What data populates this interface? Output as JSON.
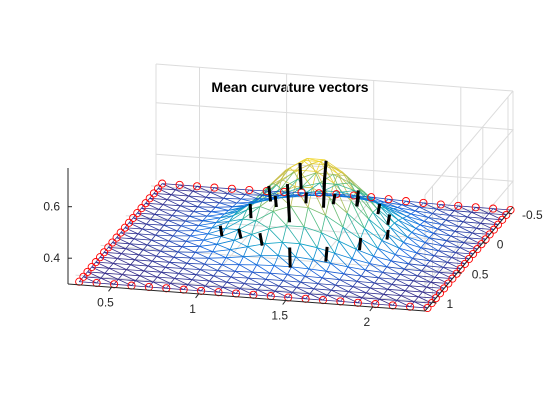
{
  "chart_data": {
    "type": "surface",
    "title": "Mean curvature vectors",
    "xlabel": "",
    "ylabel": "",
    "zlabel": "",
    "x_ticks": [
      "0.5",
      "1",
      "1.5",
      "2"
    ],
    "y_ticks": [
      "-0.5",
      "0",
      "0.5",
      "1"
    ],
    "z_ticks": [
      "0.4",
      "0.6"
    ],
    "xlim": [
      0.25,
      2.3
    ],
    "ylim": [
      -0.6,
      1.15
    ],
    "zlim": [
      0.3,
      0.75
    ],
    "grid": true,
    "mesh": {
      "nx": 21,
      "ny": 21,
      "base_z": 0.3,
      "bump_height": 0.3,
      "bump_center": [
        1.35,
        0.1
      ],
      "bump_width": 0.25,
      "colormap": "parula",
      "style": "triangulated wireframe"
    },
    "boundary_marker": {
      "shape": "circle",
      "color": "#ff0000"
    },
    "vector_color": "#000000",
    "vectors": [
      {
        "x": 0.85,
        "y": 0.2,
        "dx": 0.01,
        "dy": 0.0,
        "dz": -0.04
      },
      {
        "x": 0.95,
        "y": -0.05,
        "dx": 0.01,
        "dy": 0.02,
        "dz": -0.05
      },
      {
        "x": 1.05,
        "y": -0.2,
        "dx": 0.01,
        "dy": 0.01,
        "dz": -0.04
      },
      {
        "x": 1.2,
        "y": -0.3,
        "dx": 0.0,
        "dy": 0.01,
        "dz": -0.04
      },
      {
        "x": 1.35,
        "y": -0.35,
        "dx": -0.01,
        "dy": 0.0,
        "dz": -0.04
      },
      {
        "x": 1.5,
        "y": -0.3,
        "dx": -0.01,
        "dy": 0.0,
        "dz": -0.04
      },
      {
        "x": 1.65,
        "y": -0.2,
        "dx": -0.01,
        "dy": 0.0,
        "dz": -0.04
      },
      {
        "x": 1.75,
        "y": -0.05,
        "dx": -0.01,
        "dy": 0.0,
        "dz": -0.04
      },
      {
        "x": 1.8,
        "y": 0.15,
        "dx": -0.01,
        "dy": -0.01,
        "dz": -0.04
      },
      {
        "x": 1.7,
        "y": 0.35,
        "dx": -0.01,
        "dy": -0.01,
        "dz": -0.05
      },
      {
        "x": 1.55,
        "y": 0.5,
        "dx": -0.01,
        "dy": -0.01,
        "dz": -0.06
      },
      {
        "x": 1.35,
        "y": 0.55,
        "dx": 0.0,
        "dy": -0.01,
        "dz": -0.08
      },
      {
        "x": 1.15,
        "y": 0.45,
        "dx": 0.01,
        "dy": -0.01,
        "dz": -0.05
      },
      {
        "x": 1.0,
        "y": 0.35,
        "dx": 0.01,
        "dy": -0.01,
        "dz": -0.04
      },
      {
        "x": 1.25,
        "y": 0.0,
        "dx": 0.01,
        "dy": 0.01,
        "dz": -0.1
      },
      {
        "x": 1.4,
        "y": 0.0,
        "dx": -0.01,
        "dy": 0.01,
        "dz": -0.1
      },
      {
        "x": 1.45,
        "y": 0.2,
        "dx": -0.01,
        "dy": -0.01,
        "dz": -0.12
      },
      {
        "x": 1.25,
        "y": 0.25,
        "dx": 0.01,
        "dy": -0.01,
        "dz": -0.15
      },
      {
        "x": 1.6,
        "y": 0.05,
        "dx": -0.01,
        "dy": 0.0,
        "dz": -0.06
      },
      {
        "x": 1.1,
        "y": 0.1,
        "dx": 0.01,
        "dy": 0.0,
        "dz": -0.06
      }
    ]
  }
}
